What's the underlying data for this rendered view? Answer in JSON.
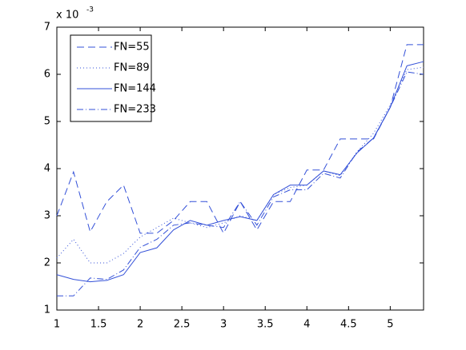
{
  "chart_data": {
    "type": "line",
    "y_multiplier": "x 10",
    "y_multiplier_exponent": "-3",
    "x": [
      1,
      1.2,
      1.4,
      1.6,
      1.8,
      2,
      2.2,
      2.4,
      2.6,
      2.8,
      3,
      3.2,
      3.4,
      3.6,
      3.8,
      4,
      4.2,
      4.4,
      4.6,
      4.8,
      5,
      5.2,
      5.4
    ],
    "series": [
      {
        "name": "FN=55",
        "color": "#3350d8",
        "dash": "9 5",
        "values": [
          3.0,
          3.93,
          2.66,
          3.3,
          3.65,
          2.63,
          2.63,
          2.9,
          3.3,
          3.3,
          2.63,
          3.3,
          2.7,
          3.3,
          3.3,
          3.97,
          3.97,
          4.63,
          4.63,
          4.63,
          5.3,
          6.63,
          6.63
        ]
      },
      {
        "name": "FN=89",
        "color": "#3350d8",
        "dash": "1 3",
        "values": [
          2.1,
          2.5,
          2.0,
          2.0,
          2.2,
          2.55,
          2.75,
          2.95,
          2.85,
          2.75,
          2.85,
          3.0,
          2.9,
          3.45,
          3.6,
          3.65,
          3.95,
          3.85,
          4.35,
          4.75,
          5.35,
          6.1,
          6.15
        ]
      },
      {
        "name": "FN=144",
        "color": "#3350d8",
        "dash": "none",
        "values": [
          1.75,
          1.65,
          1.6,
          1.63,
          1.75,
          2.22,
          2.32,
          2.7,
          2.9,
          2.8,
          2.9,
          2.98,
          2.9,
          3.45,
          3.65,
          3.65,
          3.95,
          3.87,
          4.33,
          4.65,
          5.3,
          6.18,
          6.27
        ]
      },
      {
        "name": "FN=233",
        "color": "#3350d8",
        "dash": "8 3 1 3",
        "values": [
          1.3,
          1.3,
          1.68,
          1.65,
          1.85,
          2.33,
          2.5,
          2.8,
          2.85,
          2.8,
          2.75,
          3.3,
          2.8,
          3.4,
          3.55,
          3.55,
          3.9,
          3.8,
          4.35,
          4.65,
          5.3,
          6.05,
          6.0
        ]
      }
    ],
    "xlim": [
      1,
      5.4
    ],
    "xticks": [
      1,
      1.5,
      2,
      2.5,
      3,
      3.5,
      4,
      4.5,
      5
    ],
    "ylim": [
      1,
      7
    ],
    "yticks": [
      1,
      2,
      3,
      4,
      5,
      6,
      7
    ],
    "legend": "upper left",
    "grid": false
  }
}
